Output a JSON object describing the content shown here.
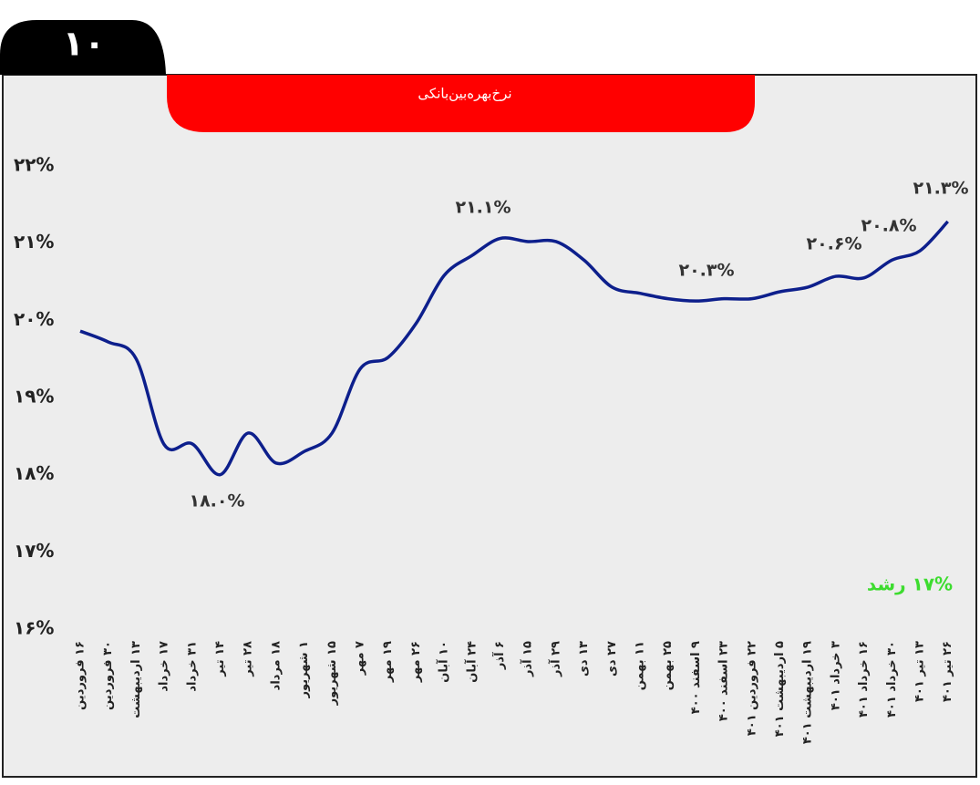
{
  "page_number": "۱۰",
  "chart_data": {
    "type": "line",
    "title": "نرخ‌بهره‌بین‌بانکی",
    "categories": [
      "۱۶ فروردین",
      "۳۰ فروردین",
      "۱۳ اردیبهشت",
      "۱۷ خرداد",
      "۳۱ خرداد",
      "۱۴ تیر",
      "۲۸ تیر",
      "۱۸ مرداد",
      "۱ شهریور",
      "۱۵ شهریور",
      "۷ مهر",
      "۱۹ مهر",
      "۲۶ مهر",
      "۱۰ آبان",
      "۲۴ آبان",
      "۶ آذر",
      "۱۵ آذر",
      "۲۹ آذر",
      "۱۳ دی",
      "۲۷ دی",
      "۱۱ بهمن",
      "۲۵ بهمن",
      "۹ اسفند ۴۰۰",
      "۲۳ اسفند ۴۰۰",
      "۲۲ فروردین ۴۰۱",
      "۵ اردیبهشت ۴۰۱",
      "۱۹ اردیبهشت ۴۰۱",
      "۳ خرداد ۴۰۱",
      "۱۶ خرداد ۴۰۱",
      "۳۰ خرداد ۴۰۱",
      "۱۳ تیر ۴۰۱",
      "۲۶ تیر ۴۰۱"
    ],
    "series": [
      {
        "color": "#0d1f8c",
        "values": [
          19.86,
          19.72,
          19.5,
          18.39,
          18.4,
          18.0,
          18.54,
          18.15,
          18.3,
          18.54,
          19.37,
          19.52,
          19.96,
          20.58,
          20.84,
          21.06,
          21.02,
          21.02,
          20.78,
          20.43,
          20.35,
          20.28,
          20.25,
          20.28,
          20.28,
          20.37,
          20.43,
          20.57,
          20.55,
          20.78,
          20.9,
          21.28
        ]
      }
    ],
    "ylim": [
      16,
      22
    ],
    "yticks": [
      {
        "value": 16,
        "label": "۱۶%"
      },
      {
        "value": 17,
        "label": "۱۷%"
      },
      {
        "value": 18,
        "label": "۱۸%"
      },
      {
        "value": 19,
        "label": "۱۹%"
      },
      {
        "value": 20,
        "label": "۲۰%"
      },
      {
        "value": 21,
        "label": "۲۱%"
      },
      {
        "value": 22,
        "label": "۲۲%"
      }
    ],
    "annotations": [
      "۱۸.۰%",
      "۲۱.۱%",
      "۲۰.۳%",
      "۲۰.۶%",
      "۲۰.۸%",
      "۲۱.۳%"
    ],
    "note": "۱۷% رشد",
    "note_color": "#3ddc2f"
  }
}
